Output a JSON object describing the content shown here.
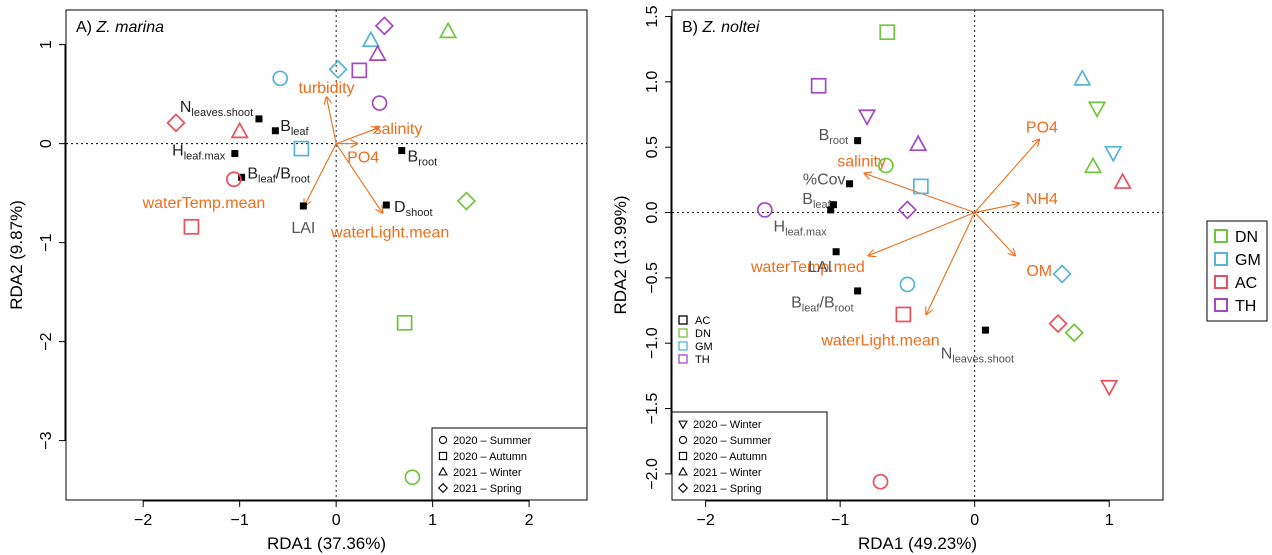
{
  "colors": {
    "AC": "#e8505b",
    "DN": "#72c43a",
    "GM": "#56b4d8",
    "TH": "#a347c2",
    "arrow": "#ee6d1a",
    "point": "#000000",
    "label_dark": "#222222",
    "label_gray": "#555555"
  },
  "chart_data": [
    {
      "type": "scatter",
      "title_prefix": "A)",
      "title_species": "Z. marina",
      "xlabel": "RDA1 (37.36%)",
      "ylabel": "RDA2 (9.87%)",
      "xlim": [
        -2.8,
        2.6
      ],
      "ylim": [
        -3.6,
        1.35
      ],
      "xticks": [
        -2,
        -1,
        0,
        1,
        2
      ],
      "yticks": [
        -3,
        -2,
        -1,
        0,
        1
      ],
      "shape_legend": [
        "2020 – Summer",
        "2020 – Autumn",
        "2021 – Winter",
        "2021 – Spring"
      ],
      "shape_legend_shapes": [
        "circle",
        "square",
        "triangle",
        "diamond"
      ],
      "shape_legend_position": "bottom-right",
      "samples": [
        {
          "x": -0.58,
          "y": 0.66,
          "site": "GM",
          "shape": "circle"
        },
        {
          "x": 0.02,
          "y": 0.75,
          "site": "GM",
          "shape": "diamond"
        },
        {
          "x": 0.24,
          "y": 0.74,
          "site": "TH",
          "shape": "square"
        },
        {
          "x": 0.36,
          "y": 1.04,
          "site": "GM",
          "shape": "triangle"
        },
        {
          "x": 0.43,
          "y": 0.9,
          "site": "TH",
          "shape": "triangle"
        },
        {
          "x": 0.5,
          "y": 1.19,
          "site": "TH",
          "shape": "diamond"
        },
        {
          "x": 1.16,
          "y": 1.13,
          "site": "DN",
          "shape": "triangle"
        },
        {
          "x": 0.45,
          "y": 0.41,
          "site": "TH",
          "shape": "circle"
        },
        {
          "x": -1.66,
          "y": 0.21,
          "site": "AC",
          "shape": "diamond"
        },
        {
          "x": -1.0,
          "y": 0.12,
          "site": "AC",
          "shape": "triangle"
        },
        {
          "x": -0.36,
          "y": -0.05,
          "site": "GM",
          "shape": "square"
        },
        {
          "x": -1.06,
          "y": -0.36,
          "site": "AC",
          "shape": "circle"
        },
        {
          "x": -1.5,
          "y": -0.84,
          "site": "AC",
          "shape": "square"
        },
        {
          "x": 1.35,
          "y": -0.58,
          "site": "DN",
          "shape": "diamond"
        },
        {
          "x": 0.71,
          "y": -1.81,
          "site": "DN",
          "shape": "square"
        },
        {
          "x": 0.79,
          "y": -3.37,
          "site": "DN",
          "shape": "circle"
        }
      ],
      "arrows": [
        {
          "label": "turbidity",
          "x": -0.1,
          "y": 0.47,
          "lx": -0.1,
          "ly": 0.57
        },
        {
          "label": "salinity",
          "x": 0.44,
          "y": 0.16,
          "lx": 0.64,
          "ly": 0.16
        },
        {
          "label": "PO4",
          "x": 0.22,
          "y": 0.0,
          "lx": 0.28,
          "ly": -0.13
        },
        {
          "label": "waterTemp.mean",
          "x": -0.33,
          "y": -0.63,
          "lx": -1.37,
          "ly": -0.59
        },
        {
          "label": "waterLight.mean",
          "x": 0.48,
          "y": -0.7,
          "lx": 0.56,
          "ly": -0.89
        }
      ],
      "responses": [
        {
          "label": "N",
          "sub": "leaves.shoot",
          "x": -0.8,
          "y": 0.25,
          "lx": -1.62,
          "ly": 0.38,
          "anchor": "start",
          "color": "dark"
        },
        {
          "label": "B",
          "sub": "leaf",
          "x": -0.63,
          "y": 0.13,
          "lx": -0.58,
          "ly": 0.19,
          "anchor": "start",
          "color": "dark"
        },
        {
          "label": "H",
          "sub": "leaf.max",
          "x": -1.05,
          "y": -0.1,
          "lx": -1.7,
          "ly": -0.06,
          "anchor": "start",
          "color": "dark"
        },
        {
          "label": "B",
          "sub": "root",
          "x": 0.68,
          "y": -0.07,
          "lx": 0.74,
          "ly": -0.12,
          "anchor": "start",
          "color": "dark"
        },
        {
          "label": "B",
          "sub": "leaf",
          "label2": "/B",
          "sub2": "root",
          "x": -0.98,
          "y": -0.34,
          "lx": -0.92,
          "ly": -0.29,
          "anchor": "start",
          "color": "dark"
        },
        {
          "label": "LAI",
          "sub": "",
          "x": -0.34,
          "y": -0.63,
          "lx": -0.34,
          "ly": -0.84,
          "anchor": "middle",
          "color": "gray"
        },
        {
          "label": "D",
          "sub": "shoot",
          "x": 0.52,
          "y": -0.62,
          "lx": 0.6,
          "ly": -0.63,
          "anchor": "start",
          "color": "dark"
        }
      ]
    },
    {
      "type": "scatter",
      "title_prefix": "B)",
      "title_species": "Z. noltei",
      "xlabel": "RDA1 (49.23%)",
      "ylabel": "RDA2 (13.99%)",
      "xlim": [
        -2.25,
        1.4
      ],
      "ylim": [
        -2.2,
        1.55
      ],
      "xticks": [
        -2,
        -1,
        0,
        1
      ],
      "yticks": [
        -2.0,
        -1.5,
        -1.0,
        -0.5,
        0.0,
        0.5,
        1.0,
        1.5
      ],
      "site_legend_inner": [
        "AC",
        "DN",
        "GM",
        "TH"
      ],
      "shape_legend": [
        "2020 – Winter",
        "2020 – Summer",
        "2020 – Autumn",
        "2021 – Winter",
        "2021 – Spring"
      ],
      "shape_legend_shapes": [
        "triangle-down",
        "circle",
        "square",
        "triangle",
        "diamond"
      ],
      "shape_legend_position": "bottom-left",
      "samples": [
        {
          "x": -0.65,
          "y": 1.38,
          "site": "DN",
          "shape": "square"
        },
        {
          "x": -1.16,
          "y": 0.97,
          "site": "TH",
          "shape": "square"
        },
        {
          "x": 0.8,
          "y": 1.02,
          "site": "GM",
          "shape": "triangle"
        },
        {
          "x": 0.91,
          "y": 0.8,
          "site": "DN",
          "shape": "triangle-down"
        },
        {
          "x": -0.8,
          "y": 0.74,
          "site": "TH",
          "shape": "triangle-down"
        },
        {
          "x": -0.42,
          "y": 0.52,
          "site": "TH",
          "shape": "triangle"
        },
        {
          "x": 1.03,
          "y": 0.46,
          "site": "GM",
          "shape": "triangle-down"
        },
        {
          "x": -0.66,
          "y": 0.36,
          "site": "DN",
          "shape": "circle"
        },
        {
          "x": 0.88,
          "y": 0.35,
          "site": "DN",
          "shape": "triangle"
        },
        {
          "x": 1.1,
          "y": 0.23,
          "site": "AC",
          "shape": "triangle"
        },
        {
          "x": -0.4,
          "y": 0.2,
          "site": "GM",
          "shape": "square"
        },
        {
          "x": -1.56,
          "y": 0.02,
          "site": "TH",
          "shape": "circle"
        },
        {
          "x": -0.5,
          "y": 0.02,
          "site": "TH",
          "shape": "diamond"
        },
        {
          "x": 0.65,
          "y": -0.47,
          "site": "GM",
          "shape": "diamond"
        },
        {
          "x": -0.5,
          "y": -0.55,
          "site": "GM",
          "shape": "circle"
        },
        {
          "x": -0.53,
          "y": -0.78,
          "site": "AC",
          "shape": "square"
        },
        {
          "x": 0.62,
          "y": -0.85,
          "site": "AC",
          "shape": "diamond"
        },
        {
          "x": 0.74,
          "y": -0.92,
          "site": "DN",
          "shape": "diamond"
        },
        {
          "x": 1.0,
          "y": -1.33,
          "site": "AC",
          "shape": "triangle-down"
        },
        {
          "x": -0.7,
          "y": -2.06,
          "site": "AC",
          "shape": "circle"
        }
      ],
      "arrows": [
        {
          "label": "PO4",
          "x": 0.48,
          "y": 0.56,
          "lx": 0.5,
          "ly": 0.66
        },
        {
          "label": "salinity",
          "x": -0.82,
          "y": 0.3,
          "lx": -0.84,
          "ly": 0.4
        },
        {
          "label": "NH4",
          "x": 0.33,
          "y": 0.07,
          "lx": 0.5,
          "ly": 0.11
        },
        {
          "label": "waterTemp.med",
          "x": -0.79,
          "y": -0.33,
          "lx": -1.24,
          "ly": -0.41
        },
        {
          "label": "OM",
          "x": 0.3,
          "y": -0.33,
          "lx": 0.48,
          "ly": -0.44
        },
        {
          "label": "waterLight.mean",
          "x": -0.36,
          "y": -0.78,
          "lx": -0.7,
          "ly": -0.97
        }
      ],
      "responses": [
        {
          "label": "B",
          "sub": "root",
          "x": -0.87,
          "y": 0.55,
          "lx": -0.94,
          "ly": 0.6,
          "anchor": "end",
          "color": "gray"
        },
        {
          "label": "%Cov",
          "sub": "",
          "x": -0.93,
          "y": 0.22,
          "lx": -0.96,
          "ly": 0.26,
          "anchor": "end",
          "color": "gray"
        },
        {
          "label": "B",
          "sub": "leaf",
          "x": -1.05,
          "y": 0.06,
          "lx": -1.07,
          "ly": 0.11,
          "anchor": "end",
          "color": "gray"
        },
        {
          "label": "H",
          "sub": "leaf.max",
          "x": -1.07,
          "y": 0.02,
          "lx": -1.1,
          "ly": -0.1,
          "anchor": "end",
          "color": "gray"
        },
        {
          "label": "LAI",
          "sub": "",
          "x": -1.03,
          "y": -0.3,
          "lx": -1.06,
          "ly": -0.41,
          "anchor": "end",
          "color": "gray"
        },
        {
          "label": "B",
          "sub": "leaf",
          "label2": "/B",
          "sub2": "root",
          "x": -0.87,
          "y": -0.6,
          "lx": -0.9,
          "ly": -0.68,
          "anchor": "end",
          "color": "gray"
        },
        {
          "label": "N",
          "sub": "leaves.shoot",
          "x": 0.08,
          "y": -0.9,
          "lx": 0.02,
          "ly": -1.07,
          "anchor": "middle",
          "color": "gray"
        }
      ]
    }
  ],
  "site_legend": [
    "DN",
    "GM",
    "AC",
    "TH"
  ]
}
